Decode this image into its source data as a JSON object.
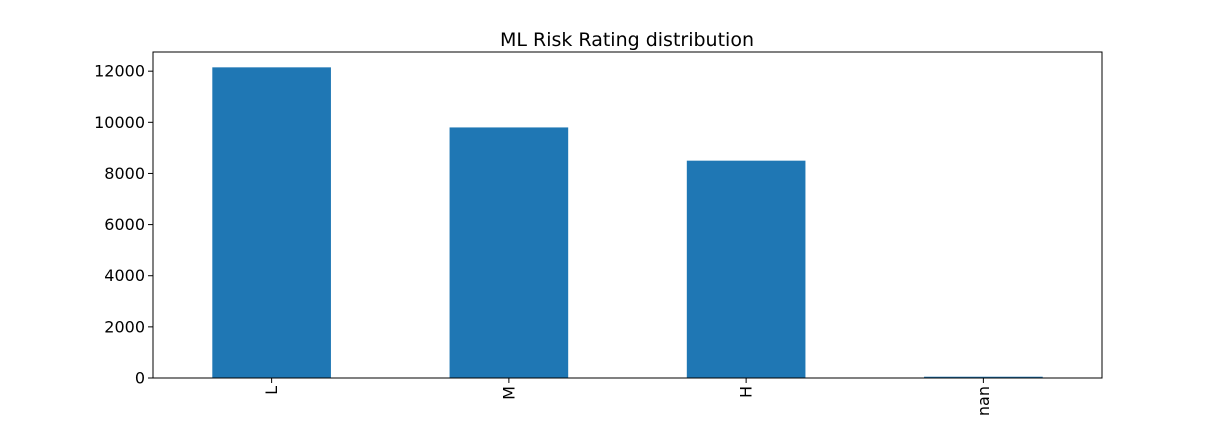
{
  "chart_data": {
    "type": "bar",
    "title": "ML Risk Rating distribution",
    "xlabel": "",
    "ylabel": "",
    "categories": [
      "L",
      "M",
      "H",
      "nan"
    ],
    "values": [
      12150,
      9800,
      8500,
      50
    ],
    "ylim": [
      0,
      12750
    ],
    "yticks": [
      0,
      2000,
      4000,
      6000,
      8000,
      10000,
      12000
    ],
    "grid": false,
    "legend": "none",
    "bar_color": "#1f77b4",
    "x_tick_rotation": 90
  }
}
